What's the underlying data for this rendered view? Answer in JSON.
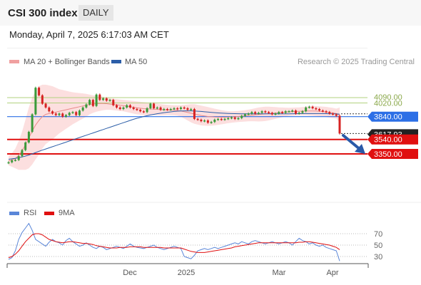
{
  "header": {
    "title": "CSI 300 index",
    "period": "DAILY"
  },
  "datetime": "Monday, April 7, 2025 6:17:03 AM CET",
  "legend": {
    "ma20_bb": "MA 20 + Bollinger Bands",
    "ma50": "MA 50",
    "credit": "Research © 2025 Trading Central",
    "rsi": "RSI",
    "rsi_ma": "9MA"
  },
  "colors": {
    "up": "#3a9a3a",
    "down": "#d62222",
    "bb_fill": "#fbd4d4",
    "ma20": "#e98a8a",
    "ma50": "#2c5ea8",
    "support": "#e01010",
    "resist": "#b2d17f",
    "pivot": "#2c6fe6",
    "arrow": "#2a5aa8",
    "rsi": "#5a86d8",
    "rsi_ma": "#e01010"
  },
  "chart_data": {
    "type": "line",
    "price_axis_labels": [
      "4090.00",
      "4020.00",
      "3840.00",
      "3617.93",
      "3540.00",
      "3350.00"
    ],
    "x_tick_labels": [
      "Dec",
      "2025",
      "Mar",
      "Apr"
    ],
    "levels": {
      "resistance": [
        4090.0,
        4020.0
      ],
      "pivot": 3840.0,
      "last_price": 3617.93,
      "support": [
        3540.0,
        3350.0
      ]
    },
    "close": [
      3240,
      3265,
      3270,
      3320,
      3400,
      3500,
      3640,
      3870,
      4220,
      4120,
      4010,
      3960,
      3910,
      3880,
      3860,
      3880,
      3840,
      3860,
      3890,
      3900,
      3860,
      3920,
      3960,
      4000,
      4060,
      3980,
      4130,
      4060,
      4080,
      4050,
      4060,
      3990,
      3960,
      3940,
      3960,
      3990,
      3960,
      3940,
      3930,
      3910,
      3900,
      3950,
      4010,
      3950,
      3960,
      3930,
      3940,
      3930,
      3940,
      3950,
      3940,
      3960,
      3950,
      3930,
      3940,
      3810,
      3800,
      3780,
      3790,
      3760,
      3770,
      3800,
      3810,
      3800,
      3810,
      3820,
      3830,
      3810,
      3820,
      3850,
      3870,
      3880,
      3900,
      3880,
      3890,
      3910,
      3900,
      3890,
      3870,
      3880,
      3900,
      3890,
      3910,
      3910,
      3920,
      3880,
      3890,
      3910,
      3960,
      3970,
      3950,
      3940,
      3920,
      3910,
      3900,
      3880,
      3870,
      3850,
      3617.93
    ],
    "ma20": [
      3260,
      3270,
      3290,
      3330,
      3390,
      3470,
      3560,
      3650,
      3730,
      3790,
      3840,
      3870,
      3880,
      3890,
      3900,
      3910,
      3920,
      3930,
      3940,
      3950,
      3960,
      3970,
      3980,
      3990,
      4000,
      4005,
      4010,
      4012,
      4012,
      4010,
      4005,
      4000,
      3995,
      3990,
      3985,
      3978,
      3970,
      3962,
      3955,
      3950,
      3945,
      3942,
      3940,
      3938,
      3935,
      3932,
      3930,
      3928,
      3926,
      3924,
      3920,
      3915,
      3905,
      3895,
      3885,
      3875,
      3865,
      3855,
      3848,
      3842,
      3838,
      3835,
      3833,
      3832,
      3832,
      3833,
      3835,
      3838,
      3842,
      3846,
      3850,
      3855,
      3860,
      3864,
      3868,
      3872,
      3876,
      3880,
      3884,
      3888,
      3892,
      3896,
      3900,
      3904,
      3906,
      3908,
      3910,
      3912,
      3914,
      3915,
      3915,
      3913,
      3910,
      3905,
      3900,
      3895,
      3888,
      3880,
      3860
    ],
    "bb_upper": [
      3320,
      3360,
      3420,
      3520,
      3640,
      3800,
      3960,
      4090,
      4180,
      4240,
      4260,
      4260,
      4250,
      4240,
      4220,
      4200,
      4190,
      4180,
      4170,
      4160,
      4155,
      4150,
      4145,
      4140,
      4130,
      4120,
      4115,
      4110,
      4100,
      4090,
      4080,
      4075,
      4070,
      4065,
      4060,
      4055,
      4050,
      4045,
      4040,
      4035,
      4030,
      4025,
      4020,
      4015,
      4010,
      4005,
      4000,
      3995,
      3992,
      3990,
      3988,
      3990,
      3995,
      4000,
      4005,
      4005,
      3995,
      3985,
      3975,
      3965,
      3955,
      3945,
      3935,
      3925,
      3918,
      3912,
      3910,
      3912,
      3915,
      3920,
      3925,
      3932,
      3940,
      3950,
      3960,
      3965,
      3970,
      3970,
      3968,
      3965,
      3962,
      3960,
      3958,
      3957,
      3958,
      3960,
      3962,
      3965,
      3970,
      3975,
      3978,
      3978,
      3975,
      3972,
      3968,
      3962,
      3955,
      3945,
      3960
    ],
    "bb_lower": [
      3200,
      3180,
      3160,
      3140,
      3140,
      3140,
      3160,
      3210,
      3280,
      3340,
      3420,
      3480,
      3510,
      3540,
      3580,
      3620,
      3650,
      3680,
      3710,
      3740,
      3765,
      3790,
      3815,
      3840,
      3870,
      3890,
      3905,
      3914,
      3924,
      3930,
      3930,
      3925,
      3920,
      3915,
      3910,
      3901,
      3890,
      3879,
      3870,
      3865,
      3860,
      3859,
      3860,
      3861,
      3860,
      3859,
      3860,
      3861,
      3860,
      3858,
      3852,
      3840,
      3815,
      3790,
      3765,
      3745,
      3735,
      3725,
      3721,
      3719,
      3721,
      3725,
      3731,
      3739,
      3746,
      3754,
      3760,
      3764,
      3769,
      3772,
      3775,
      3778,
      3780,
      3778,
      3776,
      3779,
      3782,
      3790,
      3800,
      3811,
      3822,
      3832,
      3842,
      3851,
      3854,
      3856,
      3858,
      3859,
      3858,
      3855,
      3852,
      3848,
      3845,
      3838,
      3832,
      3828,
      3821,
      3815,
      3760
    ],
    "ma50": [
      3280,
      3285,
      3292,
      3300,
      3310,
      3322,
      3335,
      3350,
      3368,
      3385,
      3400,
      3415,
      3430,
      3445,
      3460,
      3475,
      3490,
      3505,
      3520,
      3535,
      3550,
      3565,
      3580,
      3595,
      3610,
      3625,
      3640,
      3655,
      3670,
      3685,
      3700,
      3715,
      3730,
      3745,
      3760,
      3775,
      3790,
      3805,
      3818,
      3830,
      3842,
      3852,
      3862,
      3870,
      3878,
      3885,
      3892,
      3898,
      3903,
      3908,
      3912,
      3915,
      3916,
      3917,
      3916,
      3914,
      3911,
      3908,
      3904,
      3900,
      3896,
      3892,
      3889,
      3886,
      3884,
      3882,
      3880,
      3879,
      3878,
      3877,
      3876,
      3876,
      3876,
      3876,
      3876,
      3876,
      3876,
      3876,
      3876,
      3876,
      3876,
      3877,
      3877,
      3877,
      3878,
      3878,
      3879,
      3879,
      3880,
      3880,
      3880,
      3880,
      3880,
      3879,
      3879,
      3878,
      3877,
      3876,
      3872
    ],
    "rsi_ticks": [
      70,
      50,
      30
    ],
    "rsi": [
      25,
      28,
      40,
      60,
      72,
      80,
      88,
      76,
      60,
      56,
      52,
      48,
      55,
      60,
      56,
      54,
      50,
      58,
      62,
      56,
      52,
      48,
      50,
      54,
      50,
      46,
      44,
      48,
      46,
      42,
      44,
      46,
      48,
      46,
      44,
      48,
      52,
      48,
      46,
      45,
      44,
      46,
      48,
      50,
      46,
      44,
      42,
      44,
      46,
      48,
      46,
      44,
      30,
      28,
      26,
      32,
      40,
      42,
      44,
      42,
      44,
      46,
      44,
      46,
      48,
      50,
      52,
      54,
      52,
      56,
      54,
      52,
      56,
      58,
      56,
      54,
      52,
      54,
      56,
      54,
      52,
      54,
      56,
      54,
      50,
      56,
      62,
      58,
      56,
      52,
      54,
      50,
      48,
      50,
      46,
      44,
      42,
      40,
      22
    ],
    "rsi_ma9": [
      28,
      30,
      34,
      40,
      48,
      56,
      62,
      68,
      70,
      70,
      68,
      64,
      60,
      58,
      56,
      55,
      54,
      55,
      56,
      56,
      55,
      54,
      53,
      53,
      52,
      51,
      49,
      48,
      47,
      46,
      45,
      45,
      45,
      46,
      46,
      46,
      47,
      47,
      47,
      47,
      46,
      46,
      46,
      46,
      46,
      46,
      45,
      45,
      45,
      45,
      45,
      45,
      43,
      41,
      39,
      38,
      37,
      37,
      37,
      38,
      39,
      40,
      41,
      42,
      43,
      44,
      45,
      47,
      48,
      49,
      50,
      51,
      52,
      53,
      54,
      54,
      54,
      54,
      54,
      54,
      54,
      54,
      54,
      54,
      54,
      54,
      55,
      55,
      56,
      56,
      55,
      54,
      53,
      52,
      51,
      50,
      48,
      46,
      42
    ]
  }
}
